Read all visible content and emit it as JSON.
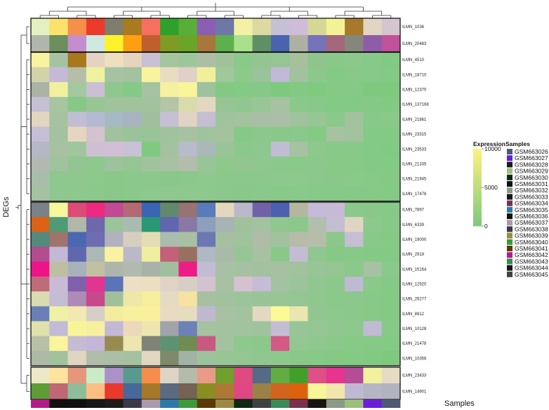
{
  "chart_data": {
    "type": "heatmap",
    "ylabel": "DEGs",
    "annotation_label": "Samples",
    "samples": [
      "GSM663026",
      "GSM663027",
      "GSM663028",
      "GSM663029",
      "GSM663030",
      "GSM663031",
      "GSM663032",
      "GSM663033",
      "GSM663034",
      "GSM663035",
      "GSM663036",
      "GSM663037",
      "GSM663038",
      "GSM663039",
      "GSM663040",
      "GSM663041",
      "GSM663042",
      "GSM663043",
      "GSM663044",
      "GSM663045"
    ],
    "sample_colors": [
      "#4e5a73",
      "#6a1fd6",
      "#1c1c1c",
      "#9bc07e",
      "#0d2a14",
      "#111111",
      "#8a9a86",
      "#15171a",
      "#7a3050",
      "#2e78a8",
      "#10100f",
      "#aa9aae",
      "#3c3a48",
      "#9a8a44",
      "#3c9a3a",
      "#5a3a08",
      "#b4198a",
      "#3a8a5a",
      "#161616",
      "#3f4245"
    ],
    "sample_order": [
      "GSM663042",
      "GSM663036",
      "GSM663031",
      "GSM663033",
      "GSM663028",
      "GSM663038",
      "GSM663037",
      "GSM663035",
      "GSM663040",
      "GSM663041",
      "GSM663039",
      "GSM663030",
      "GSM663045",
      "GSM663043",
      "GSM663034",
      "GSM663044",
      "GSM663032",
      "GSM663029",
      "GSM663027",
      "GSM663026"
    ],
    "genes": [
      "ILMN_1036",
      "ILMN_20483",
      "ILMN_4510",
      "ILMN_18710",
      "ILMN_12370",
      "ILMN_137168",
      "ILMN_21861",
      "ILMN_23315",
      "ILMN_23533",
      "ILMN_21335",
      "ILMN_21945",
      "ILMN_17478",
      "ILMN_7897",
      "ILMN_6339",
      "ILMN_19000",
      "ILMN_2919",
      "ILMN_15164",
      "ILMN_12920",
      "ILMN_26277",
      "ILMN_8912",
      "ILMN_10128",
      "ILMN_21478",
      "ILMN_10356",
      "ILMN_23433",
      "ILMN_14901"
    ],
    "row_groups": [
      2,
      10,
      11,
      2
    ],
    "colorbar": {
      "title": "Expression",
      "ticks": [
        10000,
        5000,
        0
      ],
      "min": 0,
      "max": 10000,
      "min_color": "#7fc97f",
      "max_color": "#fdf080"
    },
    "cell_colors": [
      [
        "#e3f0c1",
        "#fbe26a",
        "#f58f49",
        "#ea3b2c",
        "#7e7d6e",
        "#a87a22",
        "#f6705f",
        "#2fa02c",
        "#58af38",
        "#8a5eb2",
        "#6d78a6",
        "#f4f0a5",
        "#dcd9a3",
        "#c6c0d4",
        "#cfbcd8",
        "#d7d795",
        "#f3f396",
        "#a6792b",
        "#e2d5c1",
        "#d4c6ce"
      ],
      [
        "#b0b6aa",
        "#6c8f5c",
        "#c48dcf",
        "#cfe8e0",
        "#fdf22a",
        "#fc9f10",
        "#bf5f2c",
        "#7f9b24",
        "#6aa428",
        "#a7783a",
        "#5eb04c",
        "#a8e08c",
        "#5f8f64",
        "#4a63ae",
        "#adb1a4",
        "#7672b8",
        "#a3667a",
        "#86867c",
        "#8f5da8",
        "#c0529c"
      ],
      [
        "#f8f39e",
        "#a6c3a1",
        "#a9771c",
        "#e4d3c3",
        "#eedfc1",
        "#e6d4bf",
        "#c9c0d3",
        "#a5c59d",
        "#9dc79b",
        "#acbfa5",
        "#9fc29a",
        "#8ac98a",
        "#92c592",
        "#94c593",
        "#a5c09b",
        "#91c38c",
        "#8ac88a",
        "#8bc88b",
        "#86c988",
        "#81ca83"
      ],
      [
        "#d2d4a8",
        "#c4b9d6",
        "#b4bea9",
        "#eff19f",
        "#a6c3a1",
        "#a3c29f",
        "#f8f49d",
        "#e8ddc3",
        "#dfd1c5",
        "#f1ef9c",
        "#9fc89c",
        "#8cc98b",
        "#99c39a",
        "#c1b9d5",
        "#a2c29f",
        "#8cc88c",
        "#85c986",
        "#88c987",
        "#86c988",
        "#84c985"
      ],
      [
        "#aab3a4",
        "#f1f09f",
        "#a4c8a0",
        "#cbbfd4",
        "#8ec88e",
        "#85c986",
        "#a6c3a1",
        "#f6f1a0",
        "#f8f59a",
        "#9fc29e",
        "#82ca83",
        "#83ca84",
        "#86c986",
        "#7fc97f",
        "#82ca83",
        "#80ca80",
        "#85c985",
        "#86c986",
        "#7fc97f",
        "#7fc97f"
      ],
      [
        "#c6c0d4",
        "#a6c5a0",
        "#86c987",
        "#98c595",
        "#9fc39b",
        "#a0c39b",
        "#9fc39c",
        "#b3c5a5",
        "#d9dbad",
        "#e4d7c1",
        "#97c494",
        "#92c690",
        "#98c696",
        "#a6c2a0",
        "#8bc88b",
        "#88c888",
        "#83ca85",
        "#82ca83",
        "#85c985",
        "#82ca83"
      ],
      [
        "#e1d6be",
        "#a7c2a0",
        "#c1bed3",
        "#b5bad0",
        "#a7b9c4",
        "#a7b3bf",
        "#a0c09d",
        "#c6bfd4",
        "#e1d4c4",
        "#c4bed3",
        "#9fc39c",
        "#a3c29e",
        "#a8bfa5",
        "#abbea7",
        "#9fc39c",
        "#96c694",
        "#8bc88b",
        "#a1c29d",
        "#87c988",
        "#8ac989"
      ],
      [
        "#c5bed6",
        "#a3c29f",
        "#e6d6c0",
        "#d4c3cf",
        "#a2c19e",
        "#9bc39a",
        "#99c498",
        "#a0c29d",
        "#a6c2a1",
        "#9fc39d",
        "#a5c29f",
        "#86c987",
        "#8cc88c",
        "#8ac88a",
        "#89c989",
        "#85c985",
        "#a5c2a1",
        "#a3c29f",
        "#83ca84",
        "#84ca85"
      ],
      [
        "#b3b7c6",
        "#a8c1a3",
        "#9fc69d",
        "#cdc0d2",
        "#d0bfd5",
        "#c9c1d5",
        "#80c981",
        "#a4c2a0",
        "#b6bcc8",
        "#aab8b8",
        "#99c498",
        "#8bc98b",
        "#8ec88e",
        "#c0bdd3",
        "#a6c2a1",
        "#8dc88d",
        "#8ac88a",
        "#88c988",
        "#83ca84",
        "#81ca82"
      ],
      [
        "#b2b9b1",
        "#9fc39d",
        "#92c591",
        "#8ec88e",
        "#9cc39b",
        "#94c593",
        "#a0c39c",
        "#a7c1a2",
        "#b2bdab",
        "#98c597",
        "#8dc88d",
        "#91c690",
        "#8ec88e",
        "#8bc88b",
        "#89c989",
        "#8cc88c",
        "#88c988",
        "#87c987",
        "#85c986",
        "#83ca84"
      ],
      [
        "#a8beaa",
        "#8ec88e",
        "#8fc78f",
        "#8dc88d",
        "#8ac88a",
        "#8bc88b",
        "#8cc88c",
        "#8ac88a",
        "#8bc88b",
        "#8ec88e",
        "#8cc88c",
        "#8bc88b",
        "#8cc88c",
        "#8dc88d",
        "#8dc88d",
        "#8bc88b",
        "#8ac88a",
        "#89c989",
        "#87c987",
        "#85c985"
      ],
      [
        "#a4c3a1",
        "#8ec88e",
        "#8dc88d",
        "#8cc88c",
        "#8ac88a",
        "#8bc88b",
        "#8dc88d",
        "#8fc78f",
        "#8ec88e",
        "#8dc88d",
        "#8bc88b",
        "#8ac88a",
        "#8bc88b",
        "#8ac88a",
        "#89c989",
        "#88c988",
        "#87c987",
        "#86c986",
        "#85c985",
        "#84ca84"
      ],
      [
        "#7b8188",
        "#f6f69b",
        "#dc4a78",
        "#ee2a7e",
        "#c04a95",
        "#b46a74",
        "#3a64b4",
        "#62896d",
        "#987373",
        "#597bba",
        "#e4d7be",
        "#b9b9cb",
        "#7162a8",
        "#4d5fb0",
        "#b2b79e",
        "#c7b9d8",
        "#c7bad6",
        "#8bc98b",
        "#8ac88a",
        "#87c987"
      ],
      [
        "#da6317",
        "#4e9b76",
        "#b0b8aa",
        "#6f67ad",
        "#9ac499",
        "#aabbb2",
        "#2a9874",
        "#6066b0",
        "#8978a6",
        "#8e9fbb",
        "#a6b4b3",
        "#a1c19d",
        "#a3c2a0",
        "#8fc78f",
        "#8bc88b",
        "#b1bfac",
        "#c4bed2",
        "#e0d5c3",
        "#8dc88d",
        "#88c988"
      ],
      [
        "#528a7d",
        "#a0746c",
        "#4b67b2",
        "#6e6db0",
        "#b4b1bf",
        "#d6cfc0",
        "#e4dcb2",
        "#aabdaf",
        "#a8c0a3",
        "#6d78b2",
        "#a5c0a0",
        "#a0c29d",
        "#b0bba8",
        "#a2c19e",
        "#b6bbaa",
        "#b6bea9",
        "#8cc88c",
        "#c6bed4",
        "#88c988",
        "#86c986"
      ],
      [
        "#b24b90",
        "#c2b9d5",
        "#5f68af",
        "#abb8b4",
        "#f9f3a1",
        "#bbb9c8",
        "#f0ee9f",
        "#c3607a",
        "#977060",
        "#aeb9c3",
        "#aabaa9",
        "#96c695",
        "#a7c1a2",
        "#8ac88a",
        "#c3bcd2",
        "#90c690",
        "#86c987",
        "#88c988",
        "#84ca84",
        "#84ca85"
      ],
      [
        "#f01289",
        "#bdbfa2",
        "#a9b1bb",
        "#c1c0a2",
        "#aeb6ab",
        "#b2bab0",
        "#a8b2a7",
        "#a0c09d",
        "#ee1c86",
        "#c1bcd4",
        "#a8c0a3",
        "#a5c1a1",
        "#a2c19e",
        "#a7c0a2",
        "#a0c29d",
        "#98c597",
        "#94c593",
        "#8cc88c",
        "#a7c1a3",
        "#8bc88b"
      ],
      [
        "#c06b78",
        "#c9bad6",
        "#8060aa",
        "#e2358f",
        "#5b73b8",
        "#ecdfc5",
        "#ecdfbf",
        "#dfd3c5",
        "#d7cfc6",
        "#d2c3ce",
        "#a7c1a2",
        "#d6c1d1",
        "#c7bcd5",
        "#a3c2a0",
        "#9bc49a",
        "#92c691",
        "#8cc88c",
        "#bebad4",
        "#89c989",
        "#86c986"
      ],
      [
        "#d9dbb0",
        "#c4bdd3",
        "#ae8ab6",
        "#c8488c",
        "#a0c09c",
        "#eee7a6",
        "#f6ee9c",
        "#e5dac3",
        "#f7e2a2",
        "#a7c0a2",
        "#a1c29d",
        "#9cc49b",
        "#98c497",
        "#97c596",
        "#94c593",
        "#8fc78f",
        "#8bc88b",
        "#8bc88b",
        "#87c987",
        "#85c985"
      ],
      [
        "#6880b7",
        "#eff1a5",
        "#f1e9b1",
        "#d6cfc6",
        "#f3ec9d",
        "#f6f09f",
        "#f9ef9c",
        "#e8dbc2",
        "#e5ddbd",
        "#bfb9d0",
        "#a8c1a3",
        "#a3c2a0",
        "#e3d8c0",
        "#fbfa96",
        "#eae6b0",
        "#91c690",
        "#8dc88d",
        "#8bc88b",
        "#88c988",
        "#86c986"
      ],
      [
        "#e0e1ab",
        "#c3bbd6",
        "#f8f599",
        "#f6ef9f",
        "#c2b9d6",
        "#edd8b9",
        "#eee6ae",
        "#a0a4a8",
        "#6b81b8",
        "#a6c2a1",
        "#a4c2a0",
        "#a1c39e",
        "#9fc49d",
        "#c4bcd4",
        "#97c597",
        "#94c593",
        "#90c690",
        "#8dc88d",
        "#c0bad4",
        "#88c988"
      ],
      [
        "#b8c0a6",
        "#f8f59c",
        "#c5bcd3",
        "#c4b6d6",
        "#978c4e",
        "#eee6ae",
        "#7e8378",
        "#5d9372",
        "#718c4f",
        "#c85a82",
        "#a3c2a0",
        "#8dc88d",
        "#8cc88c",
        "#d25a83",
        "#94c693",
        "#8fc78f",
        "#8bc88b",
        "#87c987",
        "#85c986",
        "#83ca84"
      ],
      [
        "#acbaa6",
        "#a2c29e",
        "#e0d5c1",
        "#b0bda9",
        "#aabfa5",
        "#a6c1a1",
        "#e1d7c1",
        "#7e8a69",
        "#a2b3a5",
        "#9cc39b",
        "#97c596",
        "#93c692",
        "#90c790",
        "#8dc88d",
        "#8ac88a",
        "#87c987",
        "#85c985",
        "#83ca84",
        "#81ca82",
        "#7fc97f"
      ],
      [
        "#ede8c7",
        "#fde39c",
        "#e5967c",
        "#cbeac8",
        "#aa91c7",
        "#589a8e",
        "#f78d4d",
        "#ddd4c5",
        "#b3bcab",
        "#e99a88",
        "#6ea02b",
        "#e04a80",
        "#546a86",
        "#62ac44",
        "#42a02a",
        "#e04f85",
        "#e63490",
        "#b44c96",
        "#f4f19e",
        "#e6dbc4"
      ],
      [
        "#5f9c38",
        "#bf6873",
        "#8ebd9a",
        "#fbbf81",
        "#e83a2a",
        "#47689a",
        "#a47a2a",
        "#5c6a80",
        "#766254",
        "#8a8d21",
        "#ad7a36",
        "#de4783",
        "#9a8246",
        "#d2651d",
        "#dc6210",
        "#f6f69a",
        "#f1e6ac",
        "#c0b9d3",
        "#b6b5c4",
        "#b2b3c0"
      ]
    ]
  }
}
